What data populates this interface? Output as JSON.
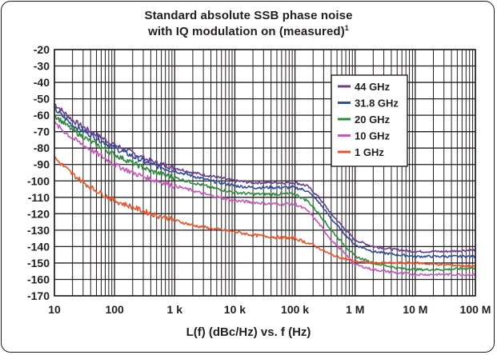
{
  "chart_data": {
    "type": "line",
    "title_line1": "Standard absolute SSB phase noise",
    "title_line2": "with IQ modulation on (measured)",
    "title_footnote": "1",
    "xlabel": "L(f) (dBc/Hz) vs. f (Hz)",
    "ylabel": "",
    "x_scale": "log",
    "xlim": [
      10,
      100000000
    ],
    "ylim": [
      -170,
      -20
    ],
    "grid": true,
    "legend_position": "top-right",
    "x_ticks": [
      {
        "value": 10,
        "label": "10"
      },
      {
        "value": 100,
        "label": "100"
      },
      {
        "value": 1000,
        "label": "1 k"
      },
      {
        "value": 10000,
        "label": "10 k"
      },
      {
        "value": 100000,
        "label": "100 k"
      },
      {
        "value": 1000000,
        "label": "1 M"
      },
      {
        "value": 10000000,
        "label": "10 M"
      },
      {
        "value": 100000000,
        "label": "100 M"
      }
    ],
    "y_ticks": [
      -20,
      -30,
      -40,
      -50,
      -60,
      -70,
      -80,
      -90,
      -100,
      -110,
      -120,
      -130,
      -140,
      -150,
      -160,
      -170
    ],
    "series": [
      {
        "name": "44 GHz",
        "color": "#6a3d8f",
        "x": [
          10,
          20,
          40,
          100,
          200,
          400,
          1000,
          2000,
          4000,
          10000,
          20000,
          40000,
          100000,
          160000,
          250000,
          400000,
          700000,
          1000000,
          2000000,
          5000000,
          10000000,
          30000000,
          100000000
        ],
        "y": [
          -53,
          -63,
          -70,
          -78,
          -83,
          -88,
          -92,
          -95,
          -97,
          -100,
          -101,
          -101,
          -101,
          -103,
          -110,
          -120,
          -130,
          -136,
          -140,
          -142,
          -143,
          -143,
          -142
        ]
      },
      {
        "name": "31.8 GHz",
        "color": "#2f4f9a",
        "x": [
          10,
          20,
          40,
          100,
          200,
          400,
          1000,
          2000,
          4000,
          10000,
          20000,
          40000,
          100000,
          160000,
          250000,
          400000,
          700000,
          1000000,
          2000000,
          5000000,
          10000000,
          30000000,
          100000000
        ],
        "y": [
          -56,
          -66,
          -72,
          -80,
          -85,
          -90,
          -94,
          -97,
          -100,
          -103,
          -104,
          -104,
          -104,
          -106,
          -113,
          -123,
          -133,
          -139,
          -143,
          -145,
          -146,
          -146,
          -146
        ]
      },
      {
        "name": "20 GHz",
        "color": "#2e8b3e",
        "x": [
          10,
          20,
          40,
          100,
          200,
          400,
          1000,
          2000,
          4000,
          10000,
          20000,
          40000,
          100000,
          160000,
          250000,
          400000,
          700000,
          1000000,
          2000000,
          5000000,
          10000000,
          30000000,
          100000000
        ],
        "y": [
          -60,
          -69,
          -76,
          -84,
          -89,
          -94,
          -98,
          -101,
          -104,
          -107,
          -108,
          -108,
          -108,
          -112,
          -120,
          -130,
          -140,
          -146,
          -150,
          -153,
          -154,
          -154,
          -153
        ]
      },
      {
        "name": "10 GHz",
        "color": "#c25ab8",
        "x": [
          10,
          20,
          40,
          100,
          200,
          400,
          1000,
          2000,
          4000,
          10000,
          20000,
          40000,
          100000,
          160000,
          250000,
          400000,
          700000,
          1000000,
          2000000,
          5000000,
          10000000,
          30000000,
          100000000
        ],
        "y": [
          -65,
          -74,
          -81,
          -90,
          -95,
          -99,
          -103,
          -106,
          -109,
          -112,
          -113,
          -114,
          -114,
          -118,
          -126,
          -136,
          -145,
          -151,
          -154,
          -156,
          -157,
          -157,
          -157
        ]
      },
      {
        "name": "1 GHz",
        "color": "#e8542a",
        "x": [
          10,
          20,
          40,
          100,
          200,
          400,
          1000,
          2000,
          4000,
          10000,
          20000,
          40000,
          100000,
          200000,
          400000,
          1000000,
          2000000,
          5000000,
          10000000,
          30000000,
          100000000
        ],
        "y": [
          -86,
          -96,
          -104,
          -112,
          -116,
          -120,
          -124,
          -127,
          -129,
          -131,
          -133,
          -134,
          -135,
          -139,
          -145,
          -149,
          -150,
          -150,
          -150,
          -151,
          -152
        ]
      }
    ]
  }
}
